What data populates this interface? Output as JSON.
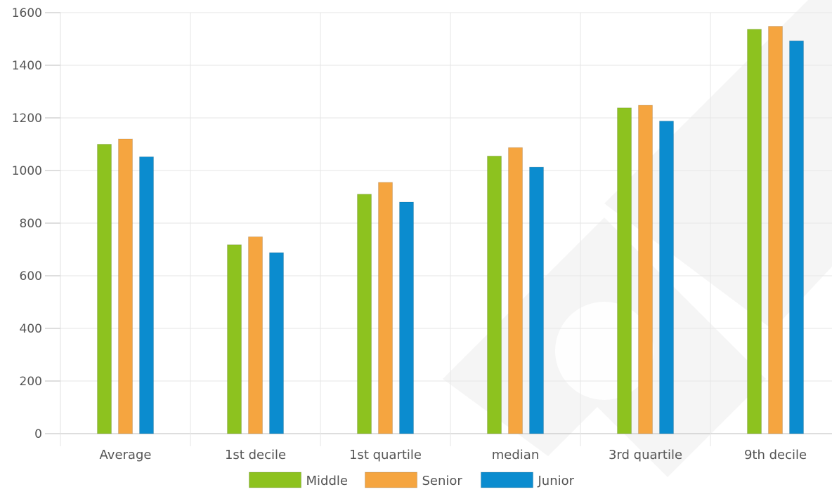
{
  "chart_data": {
    "type": "bar",
    "title": "",
    "xlabel": "",
    "ylabel": "",
    "categories": [
      "Average",
      "1st decile",
      "1st quartile",
      "median",
      "3rd quartile",
      "9th decile"
    ],
    "series": [
      {
        "name": "Middle",
        "color": "#8dc21f",
        "values": [
          1100,
          718,
          910,
          1055,
          1238,
          1537
        ]
      },
      {
        "name": "Senior",
        "color": "#f5a540",
        "values": [
          1120,
          748,
          955,
          1087,
          1248,
          1548
        ]
      },
      {
        "name": "Junior",
        "color": "#0b8ccf",
        "values": [
          1052,
          688,
          880,
          1013,
          1188,
          1493
        ]
      }
    ],
    "ylim": [
      0,
      1600
    ],
    "yticks": [
      "0",
      "200",
      "400",
      "600",
      "800",
      "1000",
      "1200",
      "1400",
      "1600"
    ],
    "grid": true,
    "legend_position": "bottom",
    "watermark_color": "#ececec"
  }
}
